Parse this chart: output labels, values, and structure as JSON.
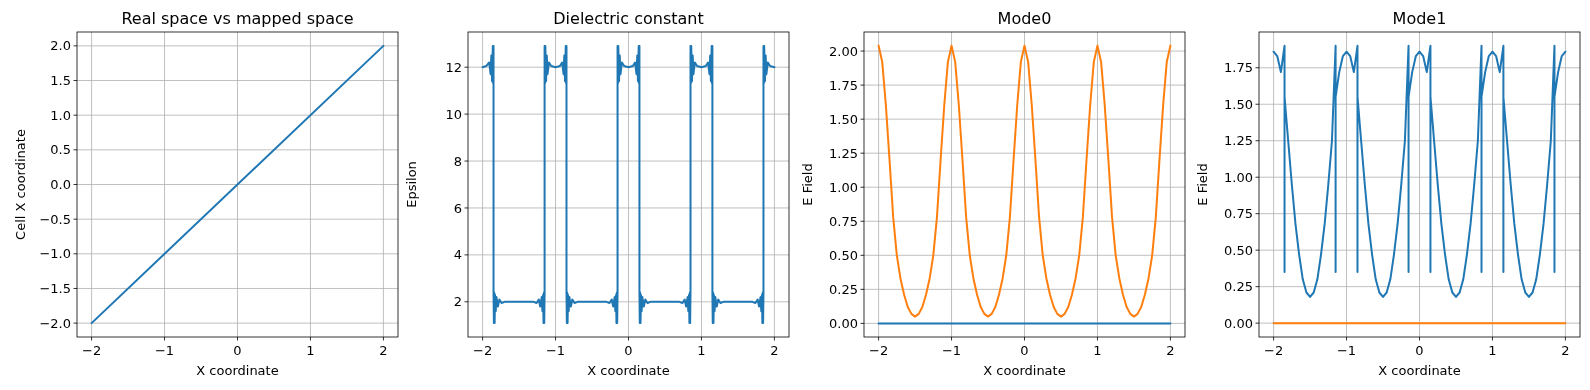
{
  "chart_data": [
    {
      "type": "line",
      "title": "Real space vs mapped space",
      "xlabel": "X coordinate",
      "ylabel": "Cell X coordinate",
      "grid": true,
      "xlim": [
        -2.2,
        2.2
      ],
      "ylim": [
        -2.2,
        2.2
      ],
      "xticks": [
        -2,
        -1,
        0,
        1,
        2
      ],
      "yticks": [
        {
          "value": -2,
          "label": "−2.0"
        },
        {
          "value": -1.5,
          "label": "−1.5"
        },
        {
          "value": -1,
          "label": "−1.0"
        },
        {
          "value": -0.5,
          "label": "−0.5"
        },
        {
          "value": 0,
          "label": "0.0"
        },
        0.5,
        {
          "value": 1,
          "label": "1.0"
        },
        1.5,
        {
          "value": 2,
          "label": "2.0"
        }
      ],
      "series": [
        {
          "color": "#1f77b4",
          "x": [
            -2,
            2
          ],
          "values": [
            -2,
            2
          ]
        }
      ]
    },
    {
      "type": "line",
      "title": "Dielectric constant",
      "xlabel": "X coordinate",
      "ylabel": "Epsilon",
      "grid": true,
      "xlim": [
        -2.2,
        2.2
      ],
      "ylim": [
        0.5,
        13.5
      ],
      "xticks": [
        -2,
        -1,
        0,
        1,
        2
      ],
      "yticks": [
        2,
        4,
        6,
        8,
        10,
        12
      ],
      "series": [
        {
          "color": "#1f77b4",
          "x": [
            -2,
            -1.95,
            -1.91,
            -1.89,
            -1.88,
            -1.87,
            -1.86,
            -1.855,
            -1.85,
            -1.85,
            -1.845,
            -1.84,
            -1.835,
            -1.83,
            -1.82,
            -1.81,
            -1.79,
            -1.77,
            -1.74,
            -1.7,
            -1.3,
            -1.26,
            -1.23,
            -1.21,
            -1.19,
            -1.18,
            -1.17,
            -1.165,
            -1.16,
            -1.155,
            -1.15,
            -1.15,
            -1.145,
            -1.14,
            -1.13,
            -1.12,
            -1.11,
            -1.09,
            -1.06,
            -1.0,
            -0.94,
            -0.91,
            -0.89,
            -0.88,
            -0.87,
            -0.86,
            -0.855,
            -0.85,
            -0.85,
            -0.845,
            -0.84,
            -0.835,
            -0.83,
            -0.82,
            -0.81,
            -0.79,
            -0.77,
            -0.74,
            -0.7,
            -0.3,
            -0.26,
            -0.23,
            -0.21,
            -0.19,
            -0.18,
            -0.17,
            -0.165,
            -0.16,
            -0.155,
            -0.15,
            -0.15,
            -0.145,
            -0.14,
            -0.13,
            -0.12,
            -0.11,
            -0.09,
            -0.06,
            0,
            0.06,
            0.09,
            0.11,
            0.12,
            0.13,
            0.14,
            0.145,
            0.15,
            0.15,
            0.155,
            0.16,
            0.165,
            0.17,
            0.18,
            0.19,
            0.21,
            0.23,
            0.26,
            0.3,
            0.7,
            0.74,
            0.77,
            0.79,
            0.81,
            0.82,
            0.83,
            0.835,
            0.84,
            0.845,
            0.85,
            0.85,
            0.855,
            0.86,
            0.87,
            0.88,
            0.89,
            0.91,
            0.94,
            1.0,
            1.06,
            1.09,
            1.11,
            1.12,
            1.13,
            1.14,
            1.145,
            1.15,
            1.15,
            1.155,
            1.16,
            1.165,
            1.17,
            1.18,
            1.19,
            1.21,
            1.23,
            1.26,
            1.3,
            1.7,
            1.74,
            1.77,
            1.79,
            1.81,
            1.82,
            1.83,
            1.835,
            1.84,
            1.845,
            1.85,
            1.85,
            1.855,
            1.86,
            1.87,
            1.88,
            1.89,
            1.91,
            1.94,
            2
          ],
          "values": [
            12,
            12.05,
            12.2,
            11.7,
            12.5,
            11.4,
            12.9,
            11.3,
            12.9,
            2.4,
            1.1,
            2.4,
            1.1,
            2.3,
            1.6,
            2.2,
            1.8,
            2.1,
            1.95,
            2,
            2,
            1.95,
            2.1,
            1.8,
            2.2,
            1.6,
            2.3,
            1.1,
            2.4,
            1.1,
            2.4,
            12.9,
            11.3,
            12.9,
            11.4,
            12.5,
            11.7,
            12.2,
            12.05,
            12,
            12.05,
            12.2,
            11.7,
            12.5,
            11.4,
            12.9,
            11.3,
            12.9,
            2.4,
            1.1,
            2.4,
            1.1,
            2.3,
            1.6,
            2.2,
            1.8,
            2.1,
            1.95,
            2,
            2,
            1.95,
            2.1,
            1.8,
            2.2,
            1.6,
            2.3,
            1.1,
            2.4,
            1.1,
            2.4,
            12.9,
            11.3,
            12.9,
            11.4,
            12.5,
            11.7,
            12.2,
            12.05,
            12,
            12.05,
            12.2,
            11.7,
            12.5,
            11.4,
            12.9,
            11.3,
            12.9,
            2.4,
            1.1,
            2.4,
            1.1,
            2.3,
            1.6,
            2.2,
            1.8,
            2.1,
            1.95,
            2,
            2,
            1.95,
            2.1,
            1.8,
            2.2,
            1.6,
            2.3,
            1.1,
            2.4,
            1.1,
            2.4,
            12.9,
            11.3,
            12.9,
            11.4,
            12.5,
            11.7,
            12.2,
            12.05,
            12,
            12.05,
            12.2,
            11.7,
            12.5,
            11.4,
            12.9,
            11.3,
            12.9,
            2.4,
            1.1,
            2.4,
            1.1,
            2.3,
            1.6,
            2.2,
            1.8,
            2.1,
            1.95,
            2,
            2,
            1.95,
            2.1,
            1.8,
            2.2,
            1.6,
            2.3,
            1.1,
            2.4,
            1.1,
            2.4,
            12.9,
            11.3,
            12.9,
            11.4,
            12.5,
            11.7,
            12.2,
            12.05,
            12
          ]
        }
      ]
    },
    {
      "type": "line",
      "title": "Mode0",
      "xlabel": "X coordinate",
      "ylabel": "E Field",
      "grid": true,
      "xlim": [
        -2.2,
        2.2
      ],
      "ylim": [
        -0.1,
        2.14
      ],
      "xticks": [
        -2,
        -1,
        0,
        1,
        2
      ],
      "yticks": [
        {
          "value": 0,
          "label": "0.00"
        },
        {
          "value": 0.25,
          "label": "0.25"
        },
        {
          "value": 0.5,
          "label": "0.50"
        },
        {
          "value": 0.75,
          "label": "0.75"
        },
        {
          "value": 1,
          "label": "1.00"
        },
        {
          "value": 1.25,
          "label": "1.25"
        },
        {
          "value": 1.5,
          "label": "1.50"
        },
        {
          "value": 1.75,
          "label": "1.75"
        },
        {
          "value": 2,
          "label": "2.00"
        }
      ],
      "series": [
        {
          "color": "#1f77b4",
          "x": [
            -2,
            2
          ],
          "values": [
            0,
            0
          ]
        },
        {
          "color": "#ff7f0e",
          "x": [
            -2,
            -1.95,
            -1.9,
            -1.85,
            -1.8,
            -1.75,
            -1.7,
            -1.65,
            -1.6,
            -1.55,
            -1.5,
            -1.45,
            -1.4,
            -1.35,
            -1.3,
            -1.25,
            -1.2,
            -1.15,
            -1.1,
            -1.05,
            -1,
            -0.95,
            -0.9,
            -0.85,
            -0.8,
            -0.75,
            -0.7,
            -0.65,
            -0.6,
            -0.55,
            -0.5,
            -0.45,
            -0.4,
            -0.35,
            -0.3,
            -0.25,
            -0.2,
            -0.15,
            -0.1,
            -0.05,
            0,
            0.05,
            0.1,
            0.15,
            0.2,
            0.25,
            0.3,
            0.35,
            0.4,
            0.45,
            0.5,
            0.55,
            0.6,
            0.65,
            0.7,
            0.75,
            0.8,
            0.85,
            0.9,
            0.95,
            1,
            1.05,
            1.1,
            1.15,
            1.2,
            1.25,
            1.3,
            1.35,
            1.4,
            1.45,
            1.5,
            1.55,
            1.6,
            1.65,
            1.7,
            1.75,
            1.8,
            1.85,
            1.9,
            1.95,
            2
          ],
          "values": [
            2.04,
            1.92,
            1.6,
            1.2,
            0.78,
            0.5,
            0.33,
            0.21,
            0.12,
            0.07,
            0.05,
            0.07,
            0.12,
            0.21,
            0.33,
            0.5,
            0.78,
            1.2,
            1.6,
            1.92,
            2.04,
            1.92,
            1.6,
            1.2,
            0.78,
            0.5,
            0.33,
            0.21,
            0.12,
            0.07,
            0.05,
            0.07,
            0.12,
            0.21,
            0.33,
            0.5,
            0.78,
            1.2,
            1.6,
            1.92,
            2.04,
            1.92,
            1.6,
            1.2,
            0.78,
            0.5,
            0.33,
            0.21,
            0.12,
            0.07,
            0.05,
            0.07,
            0.12,
            0.21,
            0.33,
            0.5,
            0.78,
            1.2,
            1.6,
            1.92,
            2.04,
            1.92,
            1.6,
            1.2,
            0.78,
            0.5,
            0.33,
            0.21,
            0.12,
            0.07,
            0.05,
            0.07,
            0.12,
            0.21,
            0.33,
            0.5,
            0.78,
            1.2,
            1.6,
            1.92,
            2.04
          ]
        }
      ]
    },
    {
      "type": "line",
      "title": "Mode1",
      "xlabel": "X coordinate",
      "ylabel": "E Field",
      "grid": true,
      "xlim": [
        -2.2,
        2.2
      ],
      "ylim": [
        -0.095,
        1.995
      ],
      "xticks": [
        -2,
        -1,
        0,
        1,
        2
      ],
      "yticks": [
        {
          "value": 0,
          "label": "0.00"
        },
        {
          "value": 0.25,
          "label": "0.25"
        },
        {
          "value": 0.5,
          "label": "0.50"
        },
        {
          "value": 0.75,
          "label": "0.75"
        },
        {
          "value": 1,
          "label": "1.00"
        },
        {
          "value": 1.25,
          "label": "1.25"
        },
        {
          "value": 1.5,
          "label": "1.50"
        },
        {
          "value": 1.75,
          "label": "1.75"
        }
      ],
      "series": [
        {
          "color": "#1f77b4",
          "x": [
            -2,
            -1.95,
            -1.9,
            -1.85,
            -1.85,
            -1.85,
            -1.8,
            -1.75,
            -1.7,
            -1.65,
            -1.6,
            -1.55,
            -1.5,
            -1.45,
            -1.4,
            -1.35,
            -1.3,
            -1.25,
            -1.2,
            -1.15,
            -1.15,
            -1.15,
            -1.1,
            -1.05,
            -1,
            -0.95,
            -0.9,
            -0.85,
            -0.85,
            -0.85,
            -0.8,
            -0.75,
            -0.7,
            -0.65,
            -0.6,
            -0.55,
            -0.5,
            -0.45,
            -0.4,
            -0.35,
            -0.3,
            -0.25,
            -0.2,
            -0.15,
            -0.15,
            -0.15,
            -0.1,
            -0.05,
            0,
            0.05,
            0.1,
            0.15,
            0.15,
            0.15,
            0.2,
            0.25,
            0.3,
            0.35,
            0.4,
            0.45,
            0.5,
            0.55,
            0.6,
            0.65,
            0.7,
            0.75,
            0.8,
            0.85,
            0.85,
            0.85,
            0.9,
            0.95,
            1,
            1.05,
            1.1,
            1.15,
            1.15,
            1.15,
            1.2,
            1.25,
            1.3,
            1.35,
            1.4,
            1.45,
            1.5,
            1.55,
            1.6,
            1.65,
            1.7,
            1.75,
            1.8,
            1.85,
            1.85,
            1.85,
            1.9,
            1.95,
            2
          ],
          "values": [
            1.86,
            1.83,
            1.72,
            1.9,
            0.35,
            1.55,
            1.25,
            0.95,
            0.68,
            0.47,
            0.3,
            0.21,
            0.18,
            0.21,
            0.3,
            0.47,
            0.68,
            0.95,
            1.25,
            1.9,
            0.35,
            1.55,
            1.72,
            1.83,
            1.86,
            1.83,
            1.72,
            1.9,
            0.35,
            1.55,
            1.25,
            0.95,
            0.68,
            0.47,
            0.3,
            0.21,
            0.18,
            0.21,
            0.3,
            0.47,
            0.68,
            0.95,
            1.25,
            1.9,
            0.35,
            1.55,
            1.72,
            1.83,
            1.86,
            1.83,
            1.72,
            1.9,
            0.35,
            1.55,
            1.25,
            0.95,
            0.68,
            0.47,
            0.3,
            0.21,
            0.18,
            0.21,
            0.3,
            0.47,
            0.68,
            0.95,
            1.25,
            1.9,
            0.35,
            1.55,
            1.72,
            1.83,
            1.86,
            1.83,
            1.72,
            1.9,
            0.35,
            1.55,
            1.25,
            0.95,
            0.68,
            0.47,
            0.3,
            0.21,
            0.18,
            0.21,
            0.3,
            0.47,
            0.68,
            0.95,
            1.25,
            1.9,
            0.35,
            1.55,
            1.72,
            1.83,
            1.86
          ]
        },
        {
          "color": "#ff7f0e",
          "x": [
            -2,
            2
          ],
          "values": [
            0,
            0
          ]
        }
      ]
    }
  ]
}
